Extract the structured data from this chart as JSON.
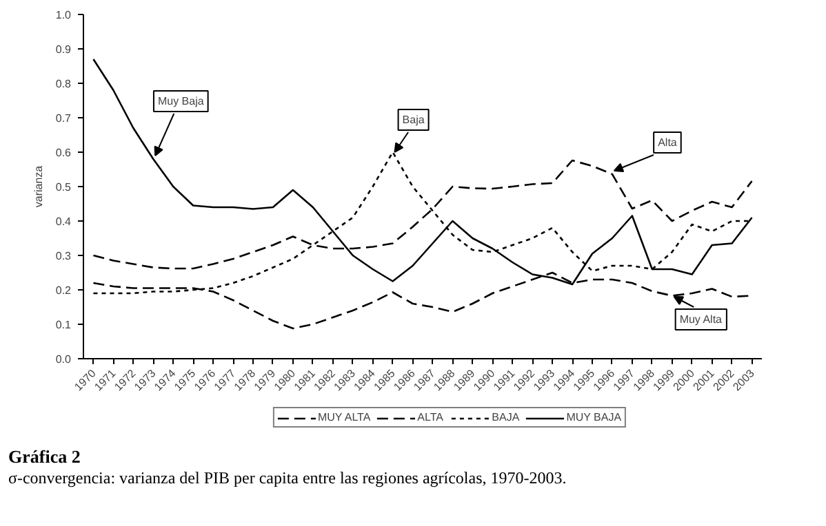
{
  "chart_data": {
    "type": "line",
    "title": "Gráfica 2",
    "subtitle": "σ-convergencia: varianza del PIB per capita entre las regiones agrícolas, 1970-2003.",
    "ylabel": "varianza",
    "categories": [
      "1970",
      "1971",
      "1972",
      "1973",
      "1974",
      "1975",
      "1976",
      "1977",
      "1978",
      "1979",
      "1980",
      "1981",
      "1982",
      "1983",
      "1984",
      "1985",
      "1986",
      "1987",
      "1988",
      "1989",
      "1990",
      "1991",
      "1992",
      "1993",
      "1994",
      "1995",
      "1996",
      "1997",
      "1998",
      "1999",
      "2000",
      "2001",
      "2002",
      "2003"
    ],
    "ylim": [
      0,
      1
    ],
    "yticks": [
      {
        "value": 0,
        "label": "0.0"
      },
      0.1,
      0.2,
      0.3,
      0.4,
      0.5,
      0.6,
      0.7,
      0.8,
      0.9,
      {
        "value": 1,
        "label": "1.0"
      }
    ],
    "grid": false,
    "legend": "bottom",
    "marker": "none",
    "series": [
      {
        "name": "MUY ALTA",
        "color": "#000000",
        "line_style": "dashed",
        "values": [
          0.22,
          0.21,
          0.205,
          0.205,
          0.205,
          0.205,
          0.195,
          0.17,
          0.14,
          0.11,
          0.088,
          0.1,
          0.12,
          0.14,
          0.164,
          0.193,
          0.16,
          0.15,
          0.136,
          0.16,
          0.19,
          0.21,
          0.23,
          0.25,
          0.22,
          0.23,
          0.23,
          0.22,
          0.196,
          0.183,
          0.19,
          0.203,
          0.18,
          0.183
        ]
      },
      {
        "name": "ALTA",
        "color": "#000000",
        "line_style": "dashed",
        "values": [
          0.3,
          0.285,
          0.275,
          0.265,
          0.262,
          0.262,
          0.275,
          0.29,
          0.31,
          0.33,
          0.355,
          0.33,
          0.32,
          0.32,
          0.325,
          0.335,
          0.383,
          0.435,
          0.5,
          0.495,
          0.494,
          0.5,
          0.507,
          0.51,
          0.576,
          0.56,
          0.536,
          0.436,
          0.46,
          0.4,
          0.43,
          0.456,
          0.44,
          0.516
        ]
      },
      {
        "name": "BAJA",
        "color": "#000000",
        "line_style": "dotted",
        "values": [
          0.19,
          0.19,
          0.19,
          0.195,
          0.195,
          0.2,
          0.205,
          0.22,
          0.24,
          0.265,
          0.29,
          0.33,
          0.37,
          0.41,
          0.5,
          0.6,
          0.5,
          0.43,
          0.36,
          0.316,
          0.31,
          0.33,
          0.35,
          0.38,
          0.31,
          0.255,
          0.27,
          0.27,
          0.26,
          0.31,
          0.39,
          0.37,
          0.4,
          0.4
        ]
      },
      {
        "name": "MUY BAJA",
        "color": "#000000",
        "line_style": "solid",
        "values": [
          0.87,
          0.78,
          0.67,
          0.58,
          0.5,
          0.445,
          0.44,
          0.44,
          0.435,
          0.44,
          0.49,
          0.44,
          0.37,
          0.3,
          0.26,
          0.225,
          0.27,
          0.335,
          0.4,
          0.35,
          0.32,
          0.28,
          0.245,
          0.235,
          0.216,
          0.305,
          0.35,
          0.415,
          0.26,
          0.26,
          0.245,
          0.33,
          0.335,
          0.41
        ]
      }
    ],
    "annotations": [
      {
        "text": "Muy Baja",
        "x": "1973",
        "y": 0.58
      },
      {
        "text": "Baja",
        "x": "1985",
        "y": 0.59
      },
      {
        "text": "Alta",
        "x": "1996",
        "y": 0.536
      },
      {
        "text": "Muy Alta",
        "x": "1999",
        "y": 0.19
      }
    ]
  }
}
